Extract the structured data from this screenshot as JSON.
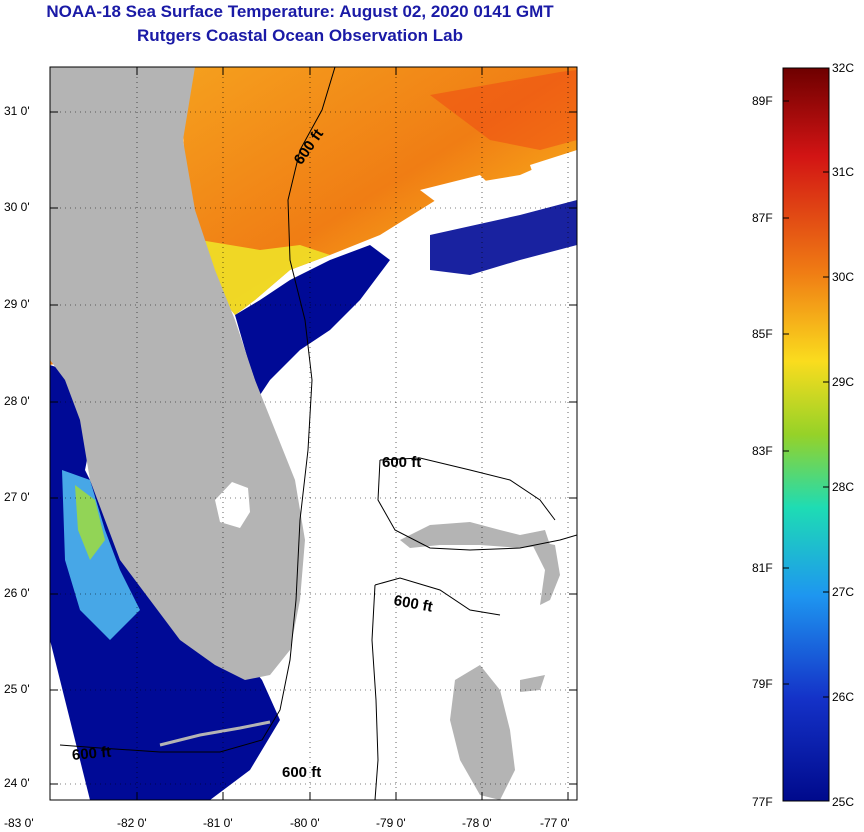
{
  "title": "NOAA-18 Sea Surface Temperature:  August 02, 2020 0141 GMT",
  "subtitle": "Rutgers Coastal Ocean Observation Lab",
  "map": {
    "lat_labels": [
      "31 0'",
      "30 0'",
      "29 0'",
      "28 0'",
      "27 0'",
      "26 0'",
      "25 0'",
      "24 0'"
    ],
    "lon_labels": [
      "-83 0'",
      "-82 0'",
      "-81 0'",
      "-80 0'",
      "-79 0'",
      "-78 0'",
      "-77 0'"
    ],
    "contour_labels": [
      "600 ft",
      "600 ft",
      "600 ft",
      "600 ft",
      "600 ft"
    ],
    "colors": {
      "land": "#b4b4b4",
      "cloud": "#ffffff",
      "warm": "#f07d14",
      "cold": "#000a96"
    }
  },
  "colorbar": {
    "celsius_labels": [
      "32C",
      "31C",
      "30C",
      "29C",
      "28C",
      "27C",
      "26C",
      "25C"
    ],
    "fahrenheit_labels": [
      "89F",
      "87F",
      "85F",
      "83F",
      "81F",
      "79F",
      "77F"
    ],
    "range_c": [
      25,
      32
    ]
  }
}
